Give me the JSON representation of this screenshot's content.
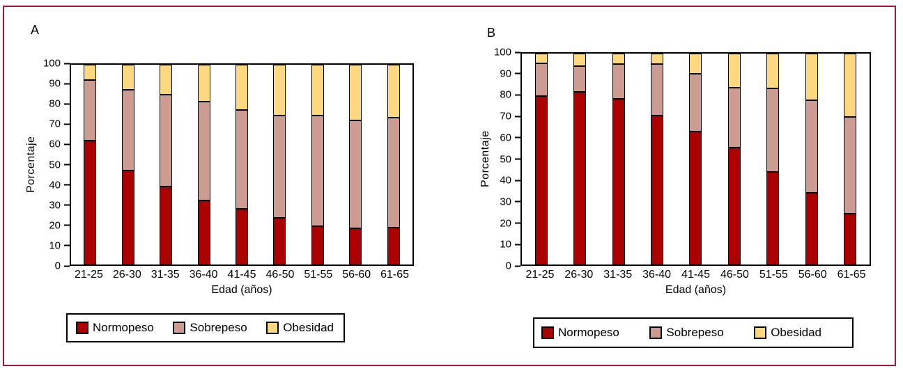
{
  "figure": {
    "background": "#ffffff",
    "frame_border_color": "#A01931",
    "axis_color": "#000000"
  },
  "colors": {
    "normopeso": "#AA0000",
    "sobrepeso": "#CC9B92",
    "obesidad": "#FDD87E"
  },
  "chart_data": [
    {
      "type": "bar",
      "stacked": true,
      "panel_label": "A",
      "xlabel": "Edad (años)",
      "ylabel": "Porcentaje",
      "ylim": [
        0,
        100
      ],
      "yticks": [
        0,
        10,
        20,
        30,
        40,
        50,
        60,
        70,
        80,
        90,
        100
      ],
      "grid": false,
      "legend_position": "bottom",
      "categories": [
        "21-25",
        "26-30",
        "31-35",
        "36-40",
        "41-45",
        "46-50",
        "51-55",
        "56-60",
        "61-65"
      ],
      "series": [
        {
          "name": "Normopeso",
          "color": "#AA0000",
          "values": [
            62,
            47,
            39,
            32,
            28,
            23.5,
            19,
            18,
            18.5
          ]
        },
        {
          "name": "Sobrepeso",
          "color": "#CC9B92",
          "values": [
            30.5,
            40.5,
            46,
            49.5,
            49.5,
            51,
            55.5,
            54,
            55
          ]
        },
        {
          "name": "Obesidad",
          "color": "#FDD87E",
          "values": [
            7.5,
            12.5,
            15,
            18.5,
            22.5,
            25.5,
            25.5,
            28,
            26.5
          ]
        }
      ]
    },
    {
      "type": "bar",
      "stacked": true,
      "panel_label": "B",
      "xlabel": "Edad (años)",
      "ylabel": "Porcentaje",
      "ylim": [
        0,
        100
      ],
      "yticks": [
        0,
        10,
        20,
        30,
        40,
        50,
        60,
        70,
        80,
        90,
        100
      ],
      "grid": false,
      "legend_position": "bottom",
      "categories": [
        "21-25",
        "26-30",
        "31-35",
        "36-40",
        "41-45",
        "46-50",
        "51-55",
        "56-60",
        "61-65"
      ],
      "series": [
        {
          "name": "Normopeso",
          "color": "#AA0000",
          "values": [
            80,
            82,
            78.5,
            70.5,
            63,
            55.5,
            44,
            34,
            24
          ]
        },
        {
          "name": "Sobrepeso",
          "color": "#CC9B92",
          "values": [
            15.5,
            12,
            16.5,
            24.5,
            27.5,
            28.5,
            39.5,
            44,
            46
          ]
        },
        {
          "name": "Obesidad",
          "color": "#FDD87E",
          "values": [
            4.5,
            6,
            5,
            5,
            9.5,
            16,
            16.5,
            22,
            30
          ]
        }
      ]
    }
  ]
}
